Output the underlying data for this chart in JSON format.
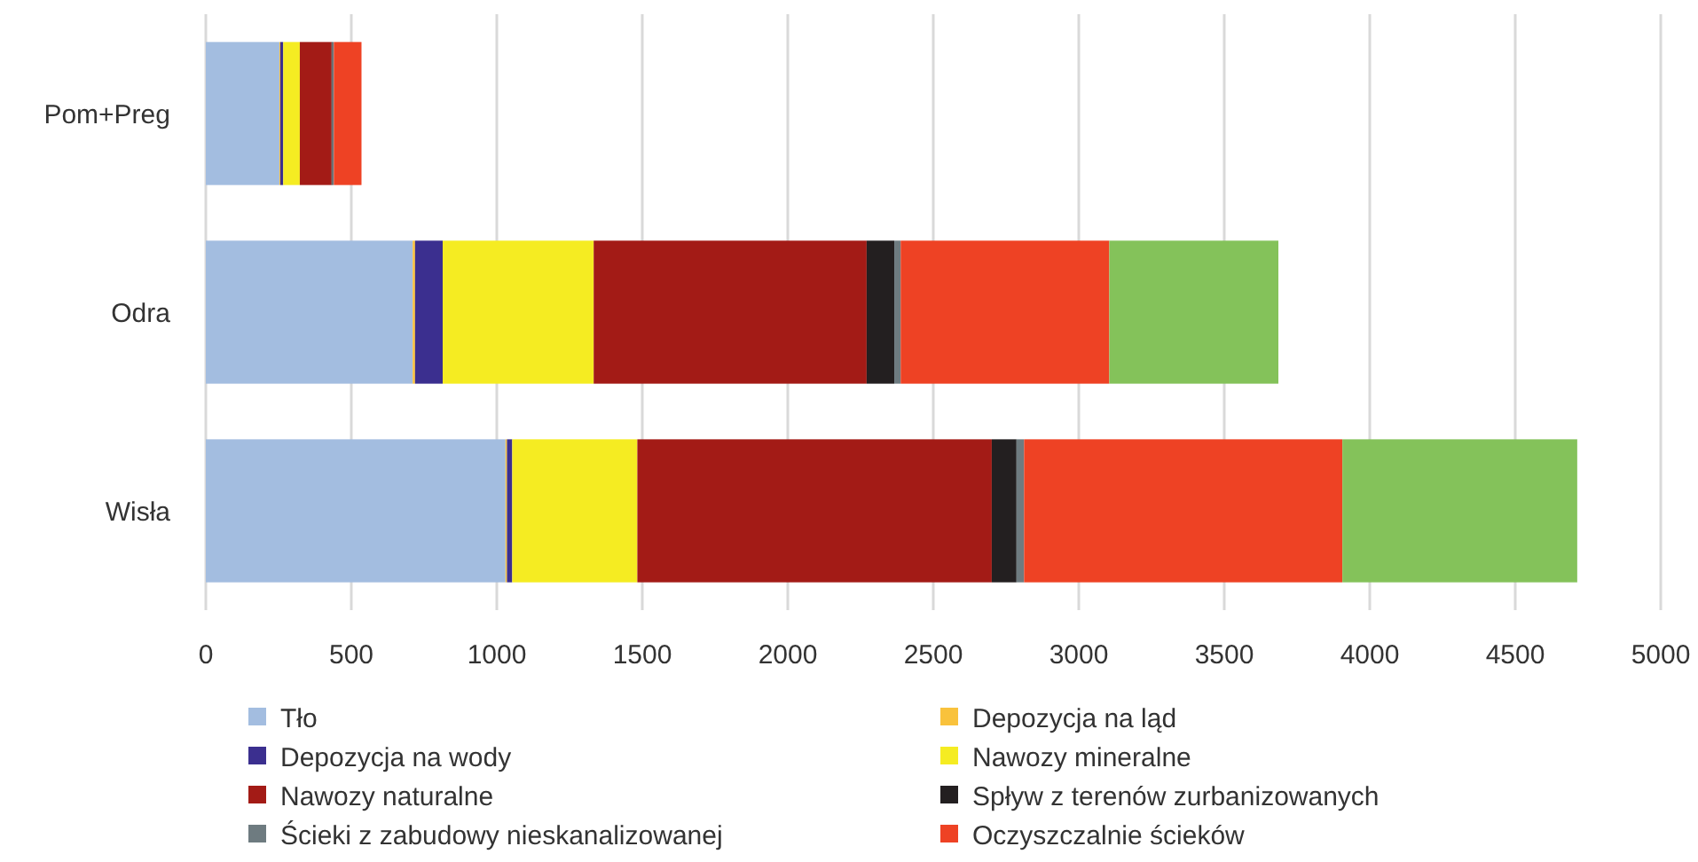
{
  "chart_data": {
    "type": "bar",
    "orientation": "horizontal",
    "stacked": true,
    "categories": [
      "Pom+Preg",
      "Odra",
      "Wisła"
    ],
    "series": [
      {
        "name": "Tło",
        "color": "#a3bde0",
        "values": [
          253,
          711,
          1030
        ]
      },
      {
        "name": "Depozycja na ląd",
        "color": "#f9c23c",
        "values": [
          3,
          8,
          5
        ]
      },
      {
        "name": "Depozycja na wody",
        "color": "#3b2f8f",
        "values": [
          10,
          95,
          18
        ]
      },
      {
        "name": "Nawozy mineralne",
        "color": "#f5ec22",
        "values": [
          57,
          519,
          430
        ]
      },
      {
        "name": "Nawozy naturalne",
        "color": "#a31b16",
        "values": [
          109,
          938,
          1218
        ]
      },
      {
        "name": "Spływ z terenów zurbanizowanych",
        "color": "#231f20",
        "values": [
          3,
          95,
          85
        ]
      },
      {
        "name": "Ścieki z zabudowy nieskanalizowanej",
        "color": "#6e7b80",
        "values": [
          5,
          22,
          26
        ]
      },
      {
        "name": "Oczyszczalnie ścieków",
        "color": "#ee4224",
        "values": [
          95,
          717,
          1094
        ]
      },
      {
        "color": "#84c25a",
        "values": [
          0,
          581,
          807
        ]
      }
    ],
    "xlim": [
      0,
      5000
    ],
    "xticks": [
      0,
      500,
      1000,
      1500,
      2000,
      2500,
      3000,
      3500,
      4000,
      4500,
      5000
    ],
    "grid": "x",
    "legend": "bottom"
  }
}
